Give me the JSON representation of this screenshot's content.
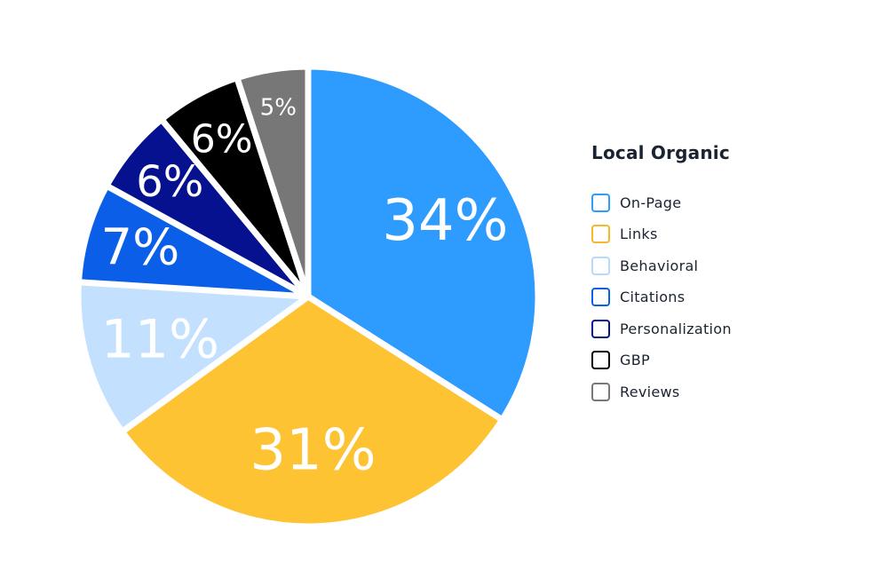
{
  "chart_data": {
    "type": "pie",
    "title": "Local Organic",
    "legend_position": "right",
    "slices": [
      {
        "name": "On-Page",
        "value": 34,
        "label": "34%",
        "color": "#2e9bff",
        "label_color": "#ffffff"
      },
      {
        "name": "Links",
        "value": 31,
        "label": "31%",
        "color": "#fdc332",
        "label_color": "#ffffff"
      },
      {
        "name": "Behavioral",
        "value": 11,
        "label": "11%",
        "color": "#c3e1ff",
        "label_color": "#ffffff"
      },
      {
        "name": "Citations",
        "value": 7,
        "label": "7%",
        "color": "#0a5ee8",
        "label_color": "#ffffff"
      },
      {
        "name": "Personalization",
        "value": 6,
        "label": "6%",
        "color": "#06118f",
        "label_color": "#ffffff"
      },
      {
        "name": "GBP",
        "value": 6,
        "label": "6%",
        "color": "#000000",
        "label_color": "#ffffff"
      },
      {
        "name": "Reviews",
        "value": 5,
        "label": "5%",
        "color": "#777777",
        "label_color": "#ffffff"
      }
    ]
  }
}
